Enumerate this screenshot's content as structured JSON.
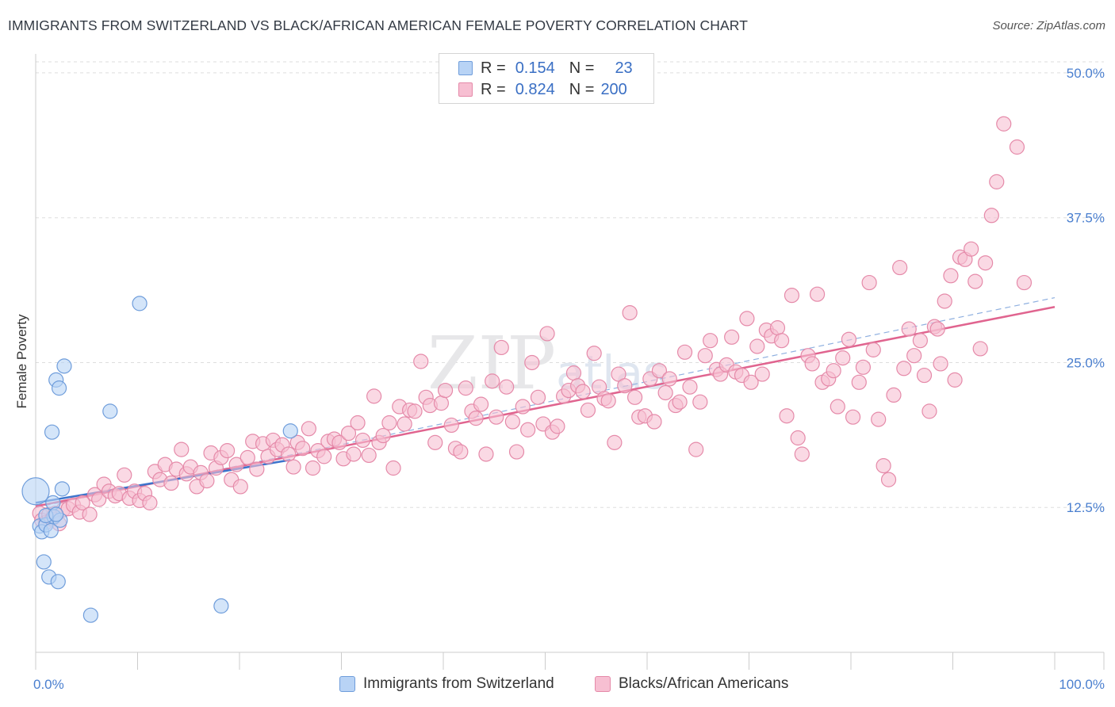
{
  "title": "IMMIGRANTS FROM SWITZERLAND VS BLACK/AFRICAN AMERICAN FEMALE POVERTY CORRELATION CHART",
  "source": "Source: ZipAtlas.com",
  "watermark": "ZIPatlas",
  "colors": {
    "blue_fill": "#b8d3f5",
    "blue_stroke": "#6f9ddb",
    "blue_line": "#3d74cc",
    "pink_fill": "#f7bfd2",
    "pink_stroke": "#e58aa9",
    "pink_line": "#e0648f",
    "tick_text": "#4a7fcf"
  },
  "legend_top": {
    "rows": [
      {
        "r_label": "R =",
        "r_value": "0.154",
        "n_label": "N =",
        "n_value": "23"
      },
      {
        "r_label": "R =",
        "r_value": "0.824",
        "n_label": "N =",
        "n_value": "200"
      }
    ]
  },
  "legend_bottom": {
    "items": [
      "Immigrants from Switzerland",
      "Blacks/African Americans"
    ]
  },
  "chart_data": {
    "type": "scatter",
    "ylabel": "Female Poverty",
    "xlabel": "",
    "xlim": [
      0,
      100
    ],
    "ylim": [
      0,
      51.5
    ],
    "x_tick_labels": [
      "0.0%",
      "100.0%"
    ],
    "y_ticks": [
      12.5,
      25.0,
      37.5,
      50.0
    ],
    "y_tick_labels": [
      "12.5%",
      "25.0%",
      "37.5%",
      "50.0%"
    ],
    "grid": "horizontal dashed",
    "series": [
      {
        "name": "Immigrants from Switzerland",
        "points": [
          [
            0,
            13.9
          ],
          [
            0.4,
            10.9
          ],
          [
            0.6,
            10.4
          ],
          [
            0.8,
            7.8
          ],
          [
            1.0,
            11.0
          ],
          [
            1.3,
            6.5
          ],
          [
            1.5,
            10.5
          ],
          [
            1.6,
            19.0
          ],
          [
            1.7,
            12.9
          ],
          [
            1.8,
            11.7
          ],
          [
            2.0,
            23.5
          ],
          [
            2.2,
            6.1
          ],
          [
            2.3,
            22.8
          ],
          [
            2.4,
            11.4
          ],
          [
            2.6,
            14.1
          ],
          [
            2.8,
            24.7
          ],
          [
            5.4,
            3.2
          ],
          [
            7.3,
            20.8
          ],
          [
            10.2,
            30.1
          ],
          [
            18.2,
            4.0
          ],
          [
            25.0,
            19.1
          ],
          [
            1.0,
            11.8
          ],
          [
            2.0,
            11.9
          ]
        ],
        "trend": [
          [
            0,
            12.9
          ],
          [
            25,
            16.6
          ]
        ]
      },
      {
        "name": "Blacks/African Americans",
        "points": [
          [
            0.4,
            12.0
          ],
          [
            0.6,
            11.4
          ],
          [
            1.0,
            11.2
          ],
          [
            1.3,
            11.9
          ],
          [
            1.6,
            11.5
          ],
          [
            1.9,
            12.0
          ],
          [
            2.3,
            11.1
          ],
          [
            2.7,
            12.3
          ],
          [
            3.2,
            12.4
          ],
          [
            3.7,
            12.7
          ],
          [
            4.3,
            12.1
          ],
          [
            4.6,
            12.9
          ],
          [
            5.3,
            11.9
          ],
          [
            5.8,
            13.6
          ],
          [
            6.2,
            13.2
          ],
          [
            6.7,
            14.5
          ],
          [
            7.2,
            13.9
          ],
          [
            7.8,
            13.5
          ],
          [
            8.2,
            13.7
          ],
          [
            8.7,
            15.3
          ],
          [
            9.2,
            13.3
          ],
          [
            9.7,
            13.9
          ],
          [
            10.2,
            13.1
          ],
          [
            10.7,
            13.7
          ],
          [
            11.2,
            12.9
          ],
          [
            11.7,
            15.6
          ],
          [
            12.2,
            14.9
          ],
          [
            12.7,
            16.2
          ],
          [
            13.3,
            14.6
          ],
          [
            13.8,
            15.8
          ],
          [
            14.3,
            17.5
          ],
          [
            14.8,
            15.4
          ],
          [
            15.2,
            16.0
          ],
          [
            15.8,
            14.3
          ],
          [
            16.2,
            15.5
          ],
          [
            16.8,
            14.8
          ],
          [
            17.2,
            17.2
          ],
          [
            17.7,
            15.9
          ],
          [
            18.2,
            16.8
          ],
          [
            18.8,
            17.4
          ],
          [
            19.2,
            14.9
          ],
          [
            19.7,
            16.2
          ],
          [
            20.1,
            14.3
          ],
          [
            20.8,
            16.8
          ],
          [
            21.3,
            18.2
          ],
          [
            21.7,
            15.8
          ],
          [
            22.3,
            18.0
          ],
          [
            22.8,
            16.9
          ],
          [
            23.3,
            18.3
          ],
          [
            23.7,
            17.5
          ],
          [
            24.2,
            17.9
          ],
          [
            24.8,
            17.1
          ],
          [
            25.3,
            16.0
          ],
          [
            25.7,
            18.1
          ],
          [
            26.2,
            17.6
          ],
          [
            26.8,
            19.3
          ],
          [
            27.2,
            15.9
          ],
          [
            27.7,
            17.4
          ],
          [
            28.3,
            16.9
          ],
          [
            28.7,
            18.2
          ],
          [
            29.3,
            18.4
          ],
          [
            29.8,
            18.1
          ],
          [
            30.2,
            16.7
          ],
          [
            30.7,
            18.9
          ],
          [
            31.2,
            17.1
          ],
          [
            31.6,
            19.8
          ],
          [
            32.1,
            18.3
          ],
          [
            32.7,
            17.0
          ],
          [
            33.2,
            22.1
          ],
          [
            33.7,
            18.1
          ],
          [
            34.1,
            18.7
          ],
          [
            34.7,
            19.8
          ],
          [
            35.1,
            15.9
          ],
          [
            35.7,
            21.2
          ],
          [
            36.2,
            19.7
          ],
          [
            36.7,
            20.9
          ],
          [
            37.2,
            20.8
          ],
          [
            37.8,
            25.1
          ],
          [
            38.3,
            22.0
          ],
          [
            38.7,
            21.3
          ],
          [
            39.2,
            18.1
          ],
          [
            39.8,
            21.5
          ],
          [
            40.2,
            22.6
          ],
          [
            40.8,
            19.6
          ],
          [
            41.2,
            17.6
          ],
          [
            41.7,
            17.3
          ],
          [
            42.2,
            22.8
          ],
          [
            42.8,
            20.8
          ],
          [
            43.2,
            20.2
          ],
          [
            43.7,
            21.4
          ],
          [
            44.2,
            17.1
          ],
          [
            44.8,
            23.4
          ],
          [
            45.2,
            20.3
          ],
          [
            45.7,
            26.3
          ],
          [
            46.2,
            22.9
          ],
          [
            46.8,
            19.9
          ],
          [
            47.2,
            17.3
          ],
          [
            47.8,
            21.2
          ],
          [
            48.3,
            19.2
          ],
          [
            48.7,
            25.0
          ],
          [
            49.3,
            22.0
          ],
          [
            49.8,
            19.7
          ],
          [
            50.2,
            27.5
          ],
          [
            50.7,
            19.0
          ],
          [
            51.2,
            19.5
          ],
          [
            51.8,
            22.1
          ],
          [
            52.3,
            22.6
          ],
          [
            52.8,
            24.1
          ],
          [
            53.2,
            23.0
          ],
          [
            53.7,
            22.5
          ],
          [
            54.2,
            20.9
          ],
          [
            54.8,
            25.8
          ],
          [
            55.3,
            22.9
          ],
          [
            55.8,
            21.9
          ],
          [
            56.2,
            21.7
          ],
          [
            56.8,
            18.1
          ],
          [
            57.2,
            24.0
          ],
          [
            57.8,
            23.0
          ],
          [
            58.3,
            29.3
          ],
          [
            58.8,
            22.0
          ],
          [
            59.2,
            20.3
          ],
          [
            59.8,
            20.4
          ],
          [
            60.3,
            23.6
          ],
          [
            60.7,
            19.9
          ],
          [
            61.2,
            24.3
          ],
          [
            61.8,
            22.4
          ],
          [
            62.2,
            23.6
          ],
          [
            62.8,
            21.3
          ],
          [
            63.2,
            21.6
          ],
          [
            63.7,
            25.9
          ],
          [
            64.2,
            22.9
          ],
          [
            64.8,
            17.5
          ],
          [
            65.2,
            21.6
          ],
          [
            65.7,
            25.6
          ],
          [
            66.2,
            26.9
          ],
          [
            66.8,
            24.4
          ],
          [
            67.2,
            24.0
          ],
          [
            67.8,
            24.8
          ],
          [
            68.3,
            27.2
          ],
          [
            68.7,
            24.2
          ],
          [
            69.3,
            23.9
          ],
          [
            69.8,
            28.8
          ],
          [
            70.2,
            23.3
          ],
          [
            70.8,
            26.4
          ],
          [
            71.3,
            24.0
          ],
          [
            71.7,
            27.8
          ],
          [
            72.2,
            27.3
          ],
          [
            72.8,
            28.0
          ],
          [
            73.2,
            26.9
          ],
          [
            73.7,
            20.4
          ],
          [
            74.2,
            30.8
          ],
          [
            74.8,
            18.5
          ],
          [
            75.2,
            17.1
          ],
          [
            75.8,
            25.6
          ],
          [
            76.2,
            24.9
          ],
          [
            76.7,
            30.9
          ],
          [
            77.2,
            23.3
          ],
          [
            77.8,
            23.6
          ],
          [
            78.3,
            24.3
          ],
          [
            78.7,
            21.2
          ],
          [
            79.2,
            25.4
          ],
          [
            79.8,
            27.0
          ],
          [
            80.2,
            20.3
          ],
          [
            80.8,
            23.3
          ],
          [
            81.2,
            24.6
          ],
          [
            81.8,
            31.9
          ],
          [
            82.2,
            26.1
          ],
          [
            82.7,
            20.1
          ],
          [
            83.2,
            16.1
          ],
          [
            83.7,
            14.9
          ],
          [
            84.2,
            22.2
          ],
          [
            84.8,
            33.2
          ],
          [
            85.2,
            24.5
          ],
          [
            85.7,
            27.9
          ],
          [
            86.2,
            25.6
          ],
          [
            86.8,
            26.9
          ],
          [
            87.2,
            23.9
          ],
          [
            87.7,
            20.8
          ],
          [
            88.2,
            28.1
          ],
          [
            88.8,
            24.9
          ],
          [
            89.2,
            30.3
          ],
          [
            89.8,
            32.5
          ],
          [
            90.2,
            23.5
          ],
          [
            90.7,
            34.1
          ],
          [
            91.2,
            33.9
          ],
          [
            91.8,
            34.8
          ],
          [
            92.2,
            32.0
          ],
          [
            92.7,
            26.2
          ],
          [
            93.2,
            33.6
          ],
          [
            93.8,
            37.7
          ],
          [
            94.3,
            40.6
          ],
          [
            95.0,
            45.6
          ],
          [
            96.3,
            43.6
          ],
          [
            97.0,
            31.9
          ],
          [
            88.5,
            27.9
          ]
        ],
        "trend": [
          [
            0,
            12.6
          ],
          [
            100,
            29.8
          ]
        ],
        "trend_dashed": [
          [
            0,
            12.5
          ],
          [
            100,
            30.6
          ]
        ]
      }
    ]
  }
}
